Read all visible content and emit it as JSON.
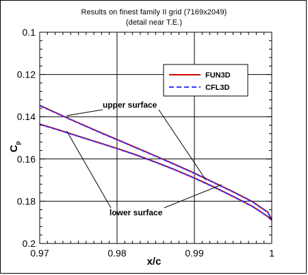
{
  "title_line1": "Results on finest family II grid (7169x2049)",
  "title_line2": "(detail near T.E.)",
  "chart_data": {
    "type": "line",
    "xlabel": "x/c",
    "ylabel": "C",
    "ylabel_sub": "p",
    "xlim": [
      0.97,
      1.0
    ],
    "ylim": [
      0.2,
      0.1
    ],
    "y_inverted": true,
    "x_ticks": [
      "0.97",
      "0.98",
      "0.99",
      "1"
    ],
    "y_ticks": [
      "0.1",
      "0.12",
      "0.14",
      "0.16",
      "0.18",
      "0.2"
    ],
    "grid": true,
    "legend_placement": "top-right",
    "series": [
      {
        "name": "FUN3D",
        "color": "#cc0000",
        "style": "solid",
        "upper": {
          "x": [
            0.97,
            0.9725,
            0.975,
            0.9775,
            0.98,
            0.9825,
            0.985,
            0.9875,
            0.99,
            0.9925,
            0.995,
            0.9975,
            0.9995,
            1.0
          ],
          "y": [
            0.1346,
            0.1388,
            0.1429,
            0.1469,
            0.1508,
            0.1547,
            0.1586,
            0.1626,
            0.1667,
            0.1711,
            0.1755,
            0.1802,
            0.1852,
            0.1887
          ]
        },
        "lower": {
          "x": [
            0.97,
            0.9725,
            0.975,
            0.9775,
            0.98,
            0.9825,
            0.985,
            0.9875,
            0.99,
            0.9925,
            0.995,
            0.9975,
            0.9995,
            1.0
          ],
          "y": [
            0.1435,
            0.1463,
            0.1492,
            0.1521,
            0.155,
            0.1581,
            0.1615,
            0.1651,
            0.169,
            0.1732,
            0.1777,
            0.1824,
            0.1873,
            0.189
          ]
        }
      },
      {
        "name": "CFL3D",
        "color": "#3333ff",
        "style": "dashed",
        "upper": {
          "x": [
            0.97,
            0.9725,
            0.975,
            0.9775,
            0.98,
            0.9825,
            0.985,
            0.9875,
            0.99,
            0.9925,
            0.995,
            0.9975,
            0.9995,
            1.0
          ],
          "y": [
            0.1347,
            0.1389,
            0.143,
            0.147,
            0.1509,
            0.1548,
            0.1587,
            0.1627,
            0.1668,
            0.1712,
            0.1756,
            0.1803,
            0.1853,
            0.1886
          ]
        },
        "lower": {
          "x": [
            0.97,
            0.9725,
            0.975,
            0.9775,
            0.98,
            0.9825,
            0.985,
            0.9875,
            0.99,
            0.9925,
            0.995,
            0.9975,
            0.9995,
            1.0
          ],
          "y": [
            0.1436,
            0.1464,
            0.1493,
            0.1522,
            0.1551,
            0.1582,
            0.1616,
            0.1652,
            0.1691,
            0.1733,
            0.1778,
            0.1825,
            0.1872,
            0.1889
          ]
        }
      }
    ],
    "annotations": [
      {
        "text": "upper surface",
        "target_x": 0.9735,
        "target_y": 0.1395
      },
      {
        "text": "lower surface",
        "target_x": 0.9735,
        "target_y": 0.1468
      }
    ]
  }
}
